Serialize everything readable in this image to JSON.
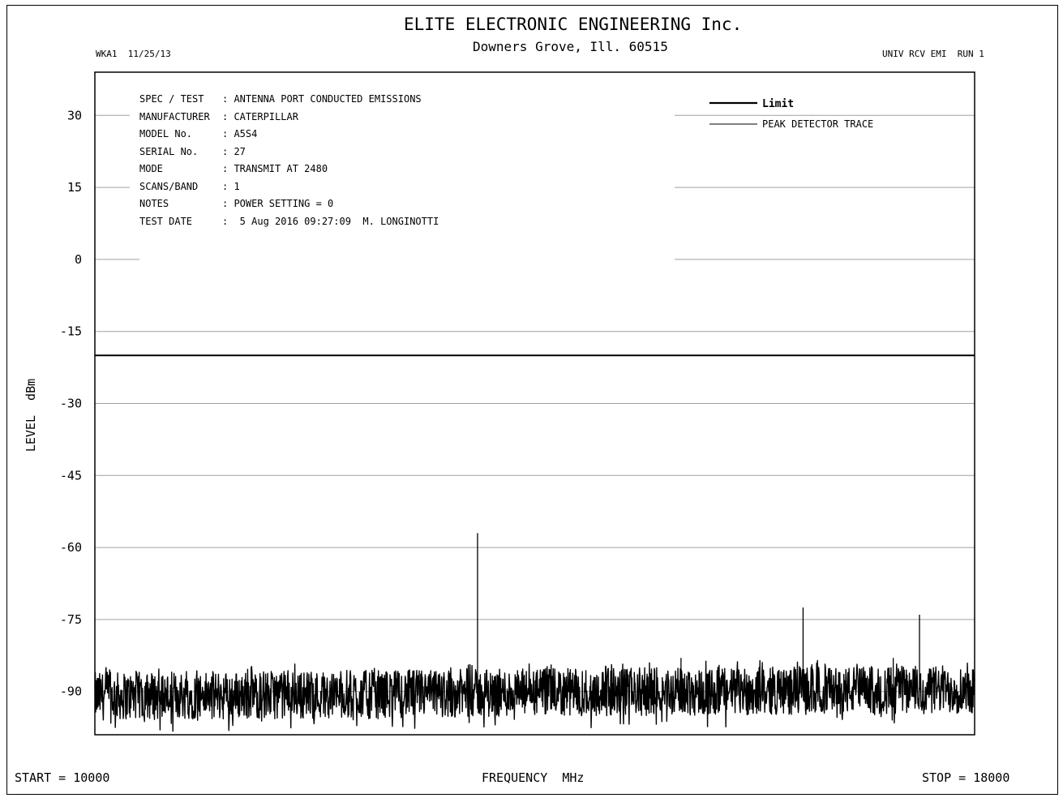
{
  "header": {
    "company": "ELITE ELECTRONIC ENGINEERING Inc.",
    "address": "Downers Grove, Ill. 60515",
    "left_code": "WKA1  11/25/13",
    "right_code": "UNIV RCV EMI  RUN 1"
  },
  "info": {
    "rows": [
      {
        "label": "SPEC / TEST",
        "value": ": ANTENNA PORT CONDUCTED EMISSIONS"
      },
      {
        "label": "MANUFACTURER",
        "value": ": CATERPILLAR"
      },
      {
        "label": "MODEL No.",
        "value": ": A5S4"
      },
      {
        "label": "SERIAL No.",
        "value": ": 27"
      },
      {
        "label": "MODE",
        "value": ": TRANSMIT AT 2480"
      },
      {
        "label": "SCANS/BAND",
        "value": ": 1"
      },
      {
        "label": "NOTES",
        "value": ": POWER SETTING = 0"
      },
      {
        "label": "TEST DATE",
        "value": ":  5 Aug 2016 09:27:09  M. LONGINOTTI"
      }
    ]
  },
  "footer": {
    "start": "START = 10000",
    "stop": "STOP = 18000"
  },
  "chart_data": {
    "type": "line",
    "xlabel": "FREQUENCY  MHz",
    "ylabel": "LEVEL  dBm",
    "xlim": [
      10000,
      18000
    ],
    "ylim": [
      -99,
      39
    ],
    "yticks": [
      30,
      15,
      0,
      -15,
      -30,
      -45,
      -60,
      -75,
      -90
    ],
    "grid": true,
    "legend_position": "top-right",
    "series": [
      {
        "name": "Limit",
        "style": "thick",
        "color": "#000000",
        "x": [
          10000,
          18000
        ],
        "y": [
          -20,
          -20
        ]
      },
      {
        "name": "PEAK  DETECTOR TRACE",
        "style": "noise-floor",
        "color": "#000000",
        "floor_start": [
          10000,
          -91
        ],
        "floor_end": [
          18000,
          -89.5
        ],
        "floor_band": 5,
        "spikes": [
          {
            "x": 13480,
            "y": -57
          },
          {
            "x": 16440,
            "y": -72.5
          },
          {
            "x": 18000,
            "y": -74
          },
          {
            "x": 15330,
            "y": -83
          },
          {
            "x": 17260,
            "y": -83
          }
        ]
      }
    ]
  }
}
